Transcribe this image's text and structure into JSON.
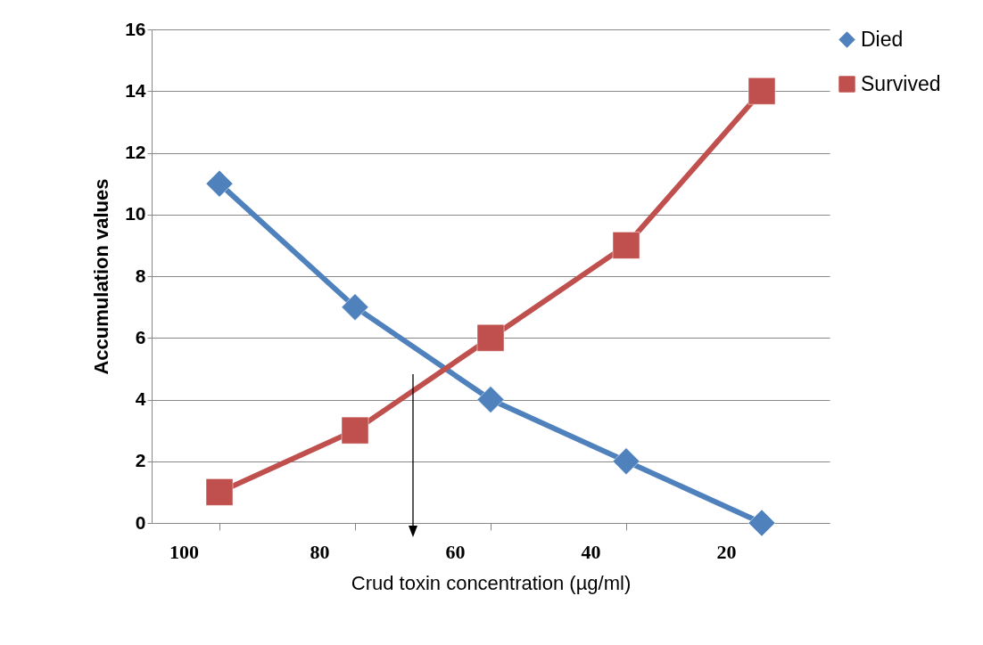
{
  "chart_data": {
    "type": "line",
    "xlabel": "Crud toxin concentration (µg/ml)",
    "ylabel": "Accumulation values",
    "categories": [
      "100",
      "80",
      "60",
      "40",
      "20"
    ],
    "series": [
      {
        "name": "Died",
        "color": "#4f81bd",
        "marker": "diamond",
        "values": [
          11,
          7,
          4,
          2,
          0
        ]
      },
      {
        "name": "Survived",
        "color": "#c0504d",
        "marker": "square",
        "values": [
          1,
          3,
          6,
          9,
          14
        ]
      }
    ],
    "ylim": [
      0,
      16
    ],
    "yticks": [
      0,
      2,
      4,
      6,
      8,
      10,
      12,
      14,
      16
    ],
    "grid": "y",
    "legend": "right",
    "line_style": "solid"
  }
}
